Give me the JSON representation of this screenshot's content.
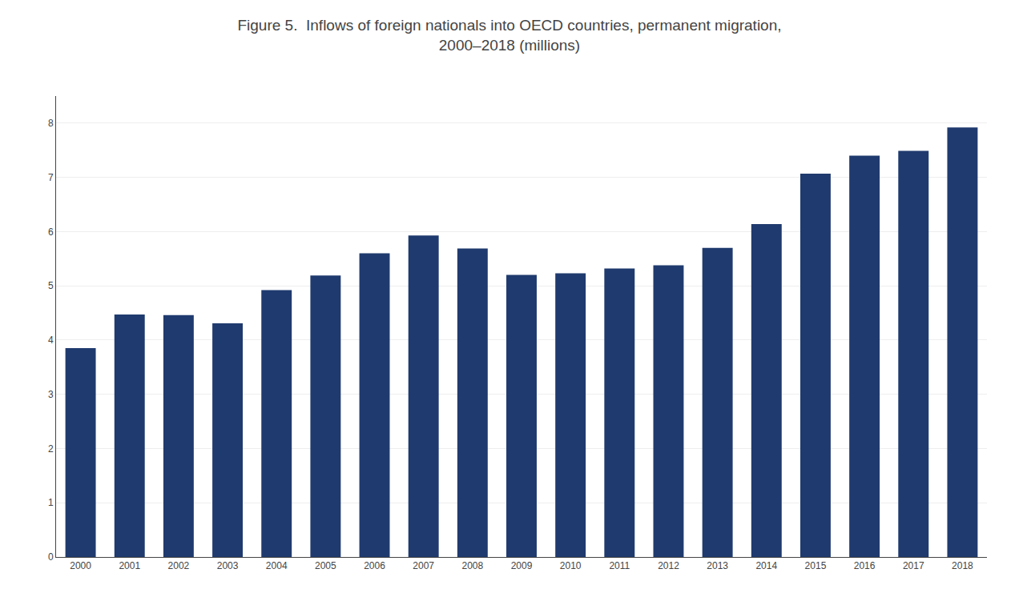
{
  "chart_data": {
    "type": "bar",
    "title": "Figure 5.  Inflows of foreign nationals into OECD countries, permanent migration,",
    "subtitle": "2000–2018 (millions)",
    "categories": [
      "2000",
      "2001",
      "2002",
      "2003",
      "2004",
      "2005",
      "2006",
      "2007",
      "2008",
      "2009",
      "2010",
      "2011",
      "2012",
      "2013",
      "2014",
      "2015",
      "2016",
      "2017",
      "2018"
    ],
    "values": [
      3.85,
      4.47,
      4.46,
      4.31,
      4.92,
      5.19,
      5.6,
      5.93,
      5.69,
      5.2,
      5.23,
      5.32,
      5.38,
      5.7,
      6.14,
      7.07,
      7.4,
      7.49,
      7.92
    ],
    "color": "#1F3A6E",
    "ylim": [
      0,
      8.5
    ],
    "yticks": [
      0,
      1,
      2,
      3,
      4,
      5,
      6,
      7,
      8
    ],
    "grid": true
  }
}
